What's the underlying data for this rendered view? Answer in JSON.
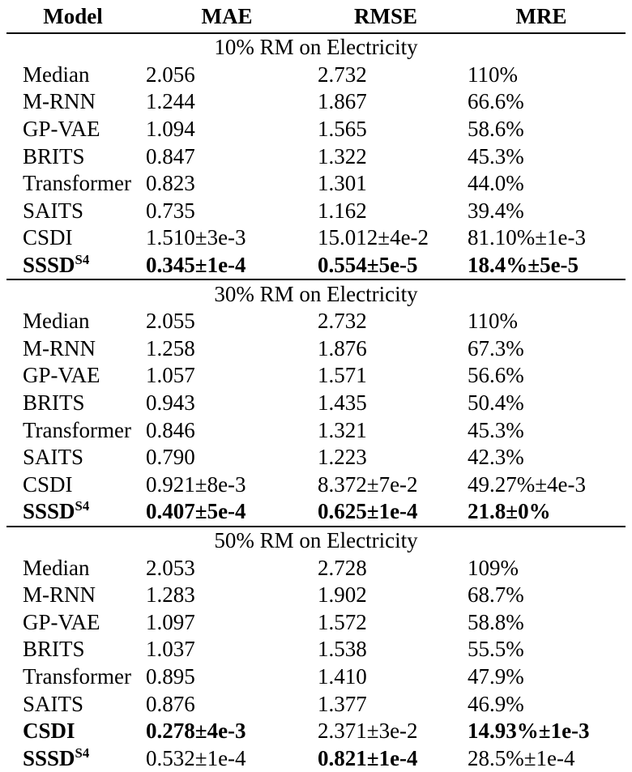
{
  "table": {
    "columns": [
      {
        "key": "model",
        "label": "Model"
      },
      {
        "key": "mae",
        "label": "MAE"
      },
      {
        "key": "rmse",
        "label": "RMSE"
      },
      {
        "key": "mre",
        "label": "MRE"
      }
    ],
    "sections": [
      {
        "title": "10% RM on Electricity",
        "rows": [
          {
            "model": "Median",
            "mae": "2.056",
            "rmse": "2.732",
            "mre": "110%",
            "bold": []
          },
          {
            "model": "M-RNN",
            "mae": "1.244",
            "rmse": "1.867",
            "mre": "66.6%",
            "bold": []
          },
          {
            "model": "GP-VAE",
            "mae": "1.094",
            "rmse": "1.565",
            "mre": "58.6%",
            "bold": []
          },
          {
            "model": "BRITS",
            "mae": "0.847",
            "rmse": "1.322",
            "mre": "45.3%",
            "bold": []
          },
          {
            "model": "Transformer",
            "mae": "0.823",
            "rmse": "1.301",
            "mre": "44.0%",
            "bold": []
          },
          {
            "model": "SAITS",
            "mae": "0.735",
            "rmse": "1.162",
            "mre": "39.4%",
            "bold": []
          },
          {
            "model": "CSDI",
            "mae": "1.510±3e-3",
            "rmse": "15.012±4e-2",
            "mre": "81.10%±1e-3",
            "bold": []
          },
          {
            "model": "SSSD",
            "model_sup": "S4",
            "mae": "0.345±1e-4",
            "rmse": "0.554±5e-5",
            "mre": "18.4%±5e-5",
            "bold": [
              "model",
              "mae",
              "rmse",
              "mre"
            ]
          }
        ]
      },
      {
        "title": "30% RM on Electricity",
        "rows": [
          {
            "model": "Median",
            "mae": "2.055",
            "rmse": "2.732",
            "mre": "110%",
            "bold": []
          },
          {
            "model": "M-RNN",
            "mae": "1.258",
            "rmse": "1.876",
            "mre": "67.3%",
            "bold": []
          },
          {
            "model": "GP-VAE",
            "mae": "1.057",
            "rmse": "1.571",
            "mre": "56.6%",
            "bold": []
          },
          {
            "model": "BRITS",
            "mae": "0.943",
            "rmse": "1.435",
            "mre": "50.4%",
            "bold": []
          },
          {
            "model": "Transformer",
            "mae": "0.846",
            "rmse": "1.321",
            "mre": "45.3%",
            "bold": []
          },
          {
            "model": "SAITS",
            "mae": "0.790",
            "rmse": "1.223",
            "mre": "42.3%",
            "bold": []
          },
          {
            "model": "CSDI",
            "mae": "0.921±8e-3",
            "rmse": "8.372±7e-2",
            "mre": "49.27%±4e-3",
            "bold": []
          },
          {
            "model": "SSSD",
            "model_sup": "S4",
            "mae": "0.407±5e-4",
            "rmse": "0.625±1e-4",
            "mre": "21.8±0%",
            "bold": [
              "model",
              "mae",
              "rmse",
              "mre"
            ]
          }
        ]
      },
      {
        "title": "50% RM on Electricity",
        "rows": [
          {
            "model": "Median",
            "mae": "2.053",
            "rmse": "2.728",
            "mre": "109%",
            "bold": []
          },
          {
            "model": "M-RNN",
            "mae": "1.283",
            "rmse": "1.902",
            "mre": "68.7%",
            "bold": []
          },
          {
            "model": "GP-VAE",
            "mae": "1.097",
            "rmse": "1.572",
            "mre": "58.8%",
            "bold": []
          },
          {
            "model": "BRITS",
            "mae": "1.037",
            "rmse": "1.538",
            "mre": "55.5%",
            "bold": []
          },
          {
            "model": "Transformer",
            "mae": "0.895",
            "rmse": "1.410",
            "mre": "47.9%",
            "bold": []
          },
          {
            "model": "SAITS",
            "mae": "0.876",
            "rmse": "1.377",
            "mre": "46.9%",
            "bold": []
          },
          {
            "model": "CSDI",
            "mae": "0.278±4e-3",
            "rmse": "2.371±3e-2",
            "mre": "14.93%±1e-3",
            "bold": [
              "model",
              "mae",
              "mre"
            ]
          },
          {
            "model": "SSSD",
            "model_sup": "S4",
            "mae": "0.532±1e-4",
            "rmse": "0.821±1e-4",
            "mre": "28.5%±1e-4",
            "bold": [
              "model",
              "rmse"
            ]
          }
        ]
      }
    ]
  }
}
